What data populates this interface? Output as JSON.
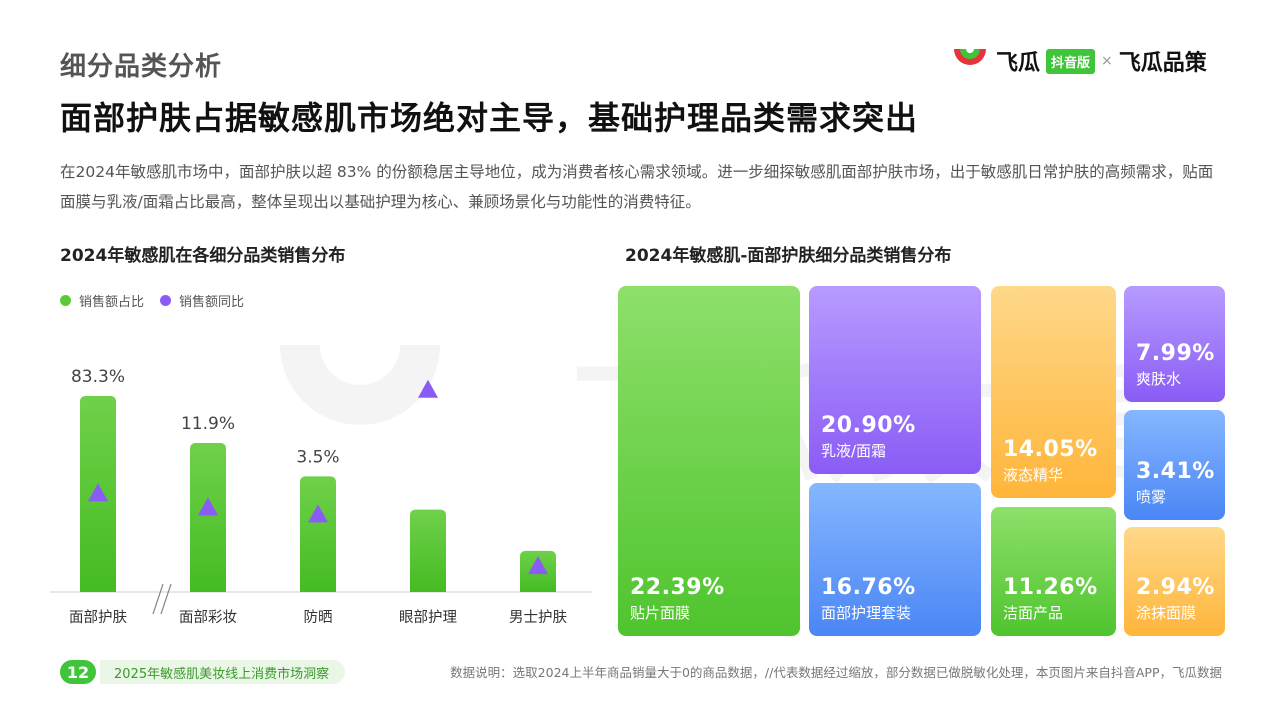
{
  "header": {
    "section_label": "细分品类分析",
    "headline": "面部护肤占据敏感肌市场绝对主导，基础护理品类需求突出",
    "description": "在2024年敏感肌市场中，面部护肤以超 83% 的份额稳居主导地位，成为消费者核心需求领域。进一步细探敏感肌面部护肤市场，出于敏感肌日常护肤的高频需求，贴面面膜与乳液/面霜占比最高，整体呈现出以基础护理为核心、兼顾场景化与功能性的消费特征。"
  },
  "brand": {
    "name": "飞瓜",
    "badge": "抖音版",
    "separator": "×",
    "partner": "飞瓜品策",
    "logo_icon": "feigua-logo-icon",
    "colors": {
      "green": "#3fc43a",
      "red": "#e8323c"
    }
  },
  "watermark": {
    "text": "飞瓜数据"
  },
  "chart_data": [
    {
      "type": "bar",
      "title": "2024年敏感肌在各细分品类销售分布",
      "legend": [
        "销售额占比",
        "销售额同比"
      ],
      "legend_position": "top-left",
      "categories": [
        "面部护肤",
        "面部彩妆",
        "防晒",
        "眼部护理",
        "男士护肤"
      ],
      "axis_break_after": "面部护肤",
      "series": [
        {
          "name": "销售额占比",
          "values": [
            83.3,
            11.9,
            3.5,
            null,
            null
          ],
          "labels": [
            "83.3%",
            "11.9%",
            "3.5%",
            "",
            ""
          ],
          "display_scale": [
            1.0,
            0.76,
            0.59,
            0.42,
            0.21
          ],
          "color": "#5cc93a"
        },
        {
          "name": "销售额同比",
          "marker": "triangle",
          "relative_level": [
            0.42,
            0.36,
            0.33,
            0.86,
            0.11
          ],
          "color": "#8a5cf5"
        }
      ],
      "grid": false
    },
    {
      "type": "treemap",
      "title": "2024年敏感肌-面部护肤细分品类销售分布",
      "items": [
        {
          "name": "贴片面膜",
          "value": 22.39,
          "label": "22.39%",
          "color": "green"
        },
        {
          "name": "乳液/面霜",
          "value": 20.9,
          "label": "20.90%",
          "color": "purple"
        },
        {
          "name": "面部护理套装",
          "value": 16.76,
          "label": "16.76%",
          "color": "blue"
        },
        {
          "name": "液态精华",
          "value": 14.05,
          "label": "14.05%",
          "color": "orange"
        },
        {
          "name": "洁面产品",
          "value": 11.26,
          "label": "11.26%",
          "color": "green"
        },
        {
          "name": "爽肤水",
          "value": 7.99,
          "label": "7.99%",
          "color": "purple"
        },
        {
          "name": "喷雾",
          "value": 3.41,
          "label": "3.41%",
          "color": "blue"
        },
        {
          "name": "涂抹面膜",
          "value": 2.94,
          "label": "2.94%",
          "color": "orange"
        }
      ],
      "palette": {
        "green": [
          "#8ee06a",
          "#4fc42e"
        ],
        "purple": [
          "#b79bff",
          "#8a5cf5"
        ],
        "blue": [
          "#86b6ff",
          "#4a86f5"
        ],
        "orange": [
          "#ffd88a",
          "#ffb53a"
        ]
      }
    }
  ],
  "footer": {
    "page_number": "12",
    "report_title": "2025年敏感肌美妆线上消费市场洞察",
    "note": "数据说明：选取2024上半年商品销量大于0的商品数据，//代表数据经过缩放，部分数据已做脱敏化处理，本页图片来自抖音APP，飞瓜数据"
  }
}
